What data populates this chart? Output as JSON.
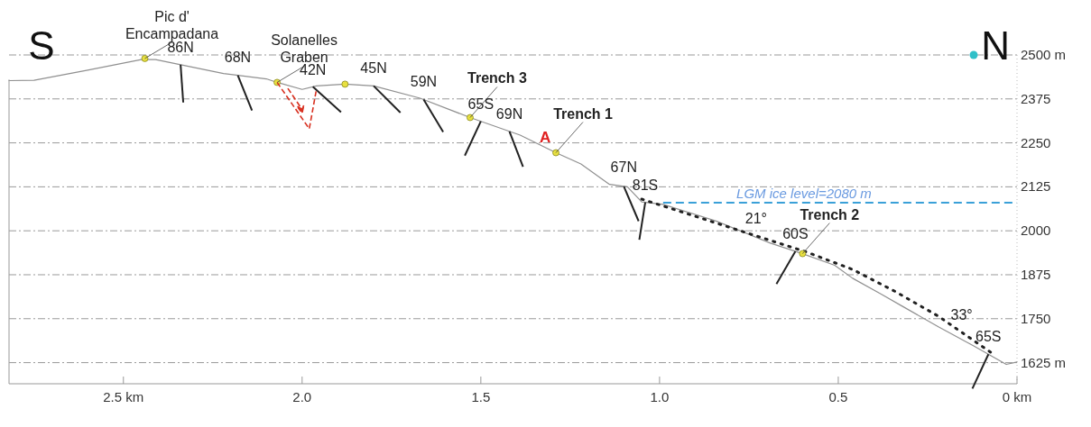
{
  "chart_data": {
    "type": "line",
    "xlim": [
      2.82,
      0
    ],
    "ylim": [
      1565,
      2500
    ],
    "xticks": [
      {
        "value": 2.5,
        "label": "2.5 km"
      },
      {
        "value": 2.0,
        "label": "2.0"
      },
      {
        "value": 1.5,
        "label": "1.5"
      },
      {
        "value": 1.0,
        "label": "1.0"
      },
      {
        "value": 0.5,
        "label": "0.5"
      },
      {
        "value": 0,
        "label": "0 km"
      }
    ],
    "yticks": [
      {
        "value": 2500,
        "label": "2500 m"
      },
      2375,
      2250,
      2125,
      2000,
      1875,
      1750,
      {
        "value": 1625,
        "label": "1625 m"
      }
    ],
    "grid": "y",
    "series": [
      {
        "color": "#909090",
        "line_style": "solid",
        "x": [
          2.82,
          2.75,
          2.6,
          2.45,
          2.41,
          2.22,
          2.1,
          2.07,
          2.0,
          1.96,
          1.88,
          1.8,
          1.67,
          1.53,
          1.39,
          1.29,
          1.22,
          1.14,
          1.09,
          1.05,
          0.99,
          0.84,
          0.69,
          0.6,
          0.51,
          0.46,
          0.38,
          0.32,
          0.22,
          0.12,
          0.03,
          0
        ],
        "values": [
          2427,
          2428,
          2457,
          2487,
          2487,
          2447,
          2432,
          2422,
          2402,
          2412,
          2417,
          2412,
          2377,
          2322,
          2272,
          2222,
          2190,
          2132,
          2125,
          2082,
          2075,
          2027,
          1965,
          1935,
          1902,
          1865,
          1820,
          1785,
          1727,
          1672,
          1620,
          1627
        ]
      },
      {
        "color": "#202020",
        "line_style": "dotted",
        "x": [
          1.05,
          0.59,
          0.46,
          0.34,
          0.22,
          0.07
        ],
        "values": [
          2090,
          1940,
          1890,
          1827,
          1757,
          1652
        ]
      },
      {
        "type": "scatter",
        "color": "#e8e040",
        "marker": "circle",
        "x": [
          2.44,
          2.07,
          1.88,
          1.53,
          1.29,
          0.6
        ],
        "values": [
          2490,
          2422,
          2417,
          2322,
          2222,
          1935
        ]
      }
    ],
    "ref_lines": [
      {
        "axis": "y",
        "value": 2080,
        "label": "LGM ice level=2080 m",
        "color": "#3aa0d8",
        "line_style": "dashed"
      }
    ],
    "annotations": [
      "S",
      "N",
      {
        "text": "Pic d' Encampadana",
        "x": 2.44,
        "y": 2490
      },
      {
        "text": "Solanelles Graben",
        "x": 2.07,
        "y": 2422
      },
      {
        "text": "Trench 3",
        "x": 1.53,
        "y": 2322
      },
      {
        "text": "A",
        "x": 1.29,
        "y": 2222
      },
      {
        "text": "Trench 1",
        "x": 1.29,
        "y": 2222
      },
      {
        "text": "Trench 2",
        "x": 0.6,
        "y": 1935
      },
      {
        "text": "86N",
        "x": 2.34,
        "y": 2471
      },
      {
        "text": "68N",
        "x": 2.18,
        "y": 2443
      },
      {
        "text": "42N",
        "x": 1.97,
        "y": 2409
      },
      {
        "text": "45N",
        "x": 1.8,
        "y": 2412
      },
      {
        "text": "59N",
        "x": 1.66,
        "y": 2374
      },
      {
        "text": "65S",
        "x": 1.5,
        "y": 2311
      },
      {
        "text": "69N",
        "x": 1.42,
        "y": 2283
      },
      {
        "text": "67N",
        "x": 1.1,
        "y": 2130
      },
      {
        "text": "81S",
        "x": 1.04,
        "y": 2081
      },
      {
        "text": "21°",
        "x": 0.73,
        "y": 1986
      },
      {
        "text": "60S",
        "x": 0.62,
        "y": 1942
      },
      {
        "text": "33°",
        "x": 0.155,
        "y": 1711
      },
      {
        "text": "65S",
        "x": 0.08,
        "y": 1650
      }
    ]
  }
}
